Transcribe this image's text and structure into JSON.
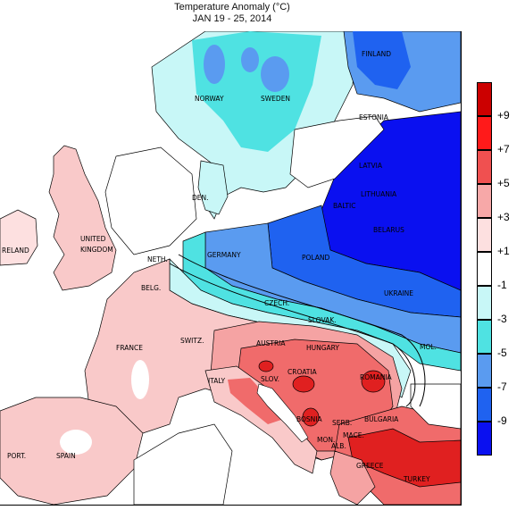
{
  "title": {
    "line1": "Temperature Anomaly (°C)",
    "line2": "JAN 19 - 25, 2014"
  },
  "countries": [
    "FINLAND",
    "NORWAY",
    "SWEDEN",
    "ESTONIA",
    "LATVIA",
    "LITHUANIA",
    "BALTIC",
    "BELARUS",
    "DEN.",
    "UNITED",
    "KINGDOM",
    "RELAND",
    "NETH.",
    "GERMANY",
    "POLAND",
    "UKRAINE",
    "BELG.",
    "CZECH.",
    "SLOVAK.",
    "MOL.",
    "FRANCE",
    "SWITZ.",
    "AUSTRIA",
    "HUNGARY",
    "ROMANIA",
    "SLOV.",
    "CROATIA",
    "ITALY",
    "BOSNIA",
    "SERB.",
    "MON.",
    "BULGARIA",
    "MACE.",
    "ALB.",
    "GREECE",
    "PORT.",
    "SPAIN",
    "TURKEY"
  ],
  "legend": {
    "labels": [
      "+9",
      "+7",
      "+5",
      "+3",
      "+1",
      "-1",
      "-3",
      "-5",
      "-7",
      "-9"
    ],
    "colors": [
      "#cc0000",
      "#ff1a1a",
      "#f05050",
      "#f7a8a8",
      "#fde0e0",
      "#ffffff",
      "#c8f7f7",
      "#4fe2e2",
      "#5a9bf0",
      "#1f62f0",
      "#0a10f0"
    ]
  },
  "colors": {
    "ocean": "#ffffff",
    "warm_light": "#f9c9c9",
    "warm_mid": "#f5a3a3",
    "warm_strong": "#f06b6b",
    "warm_deep": "#e02020",
    "cool_light": "#c8f7f7",
    "cool_mid": "#4fe2e2",
    "cool_blue": "#5a9bf0",
    "cool_deep": "#1f62f0",
    "cool_darkest": "#0a10f0"
  }
}
